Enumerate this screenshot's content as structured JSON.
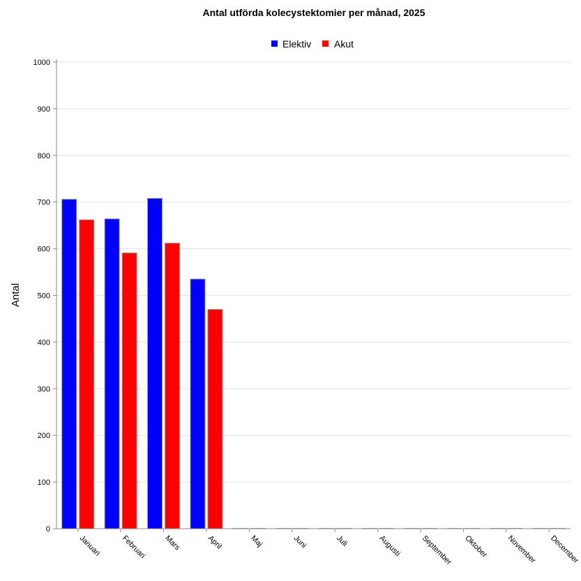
{
  "chart_data": {
    "type": "bar",
    "title": "Antal utförda kolecystektomier per månad, 2025",
    "ylabel": "Antal",
    "xlabel": "",
    "ylim": [
      0,
      1000
    ],
    "yticks": [
      0,
      100,
      200,
      300,
      400,
      500,
      600,
      700,
      800,
      900,
      1000
    ],
    "grid": true,
    "legend_position": "top-center",
    "categories": [
      "Januari",
      "Februari",
      "Mars",
      "April",
      "Maj",
      "Juni",
      "Juli",
      "Augusti",
      "September",
      "Oktober",
      "November",
      "December"
    ],
    "series": [
      {
        "name": "Elektiv",
        "color": "#0000ff",
        "values": [
          706,
          664,
          708,
          535,
          0,
          0,
          0,
          0,
          0,
          0,
          0,
          0
        ]
      },
      {
        "name": "Akut",
        "color": "#ff0000",
        "values": [
          662,
          591,
          612,
          470,
          0,
          0,
          0,
          0,
          0,
          0,
          0,
          0
        ]
      }
    ]
  }
}
